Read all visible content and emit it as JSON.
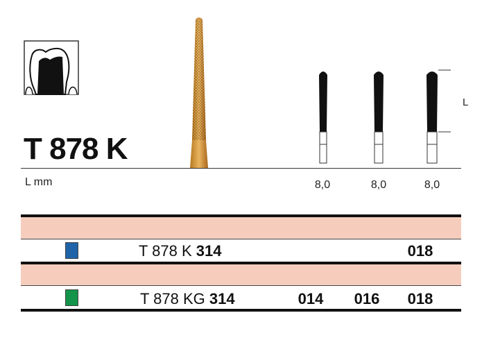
{
  "product": {
    "title": "T 878 K",
    "length_label": "L mm",
    "dimension_label": "L"
  },
  "lengths": [
    "8,0",
    "8,0",
    "8,0"
  ],
  "icons": {
    "application": "tooth-crown-preparation-icon",
    "bur": "diamond-bur-image"
  },
  "rows": [
    {
      "color": "#1f63a8",
      "code_prefix": "T 878 K",
      "code_suffix": "314",
      "sizes": [
        "",
        "",
        "018"
      ]
    },
    {
      "color": "#14944a",
      "code_prefix": "T 878 KG",
      "code_suffix": "314",
      "sizes": [
        "014",
        "016",
        "018"
      ]
    }
  ],
  "colors": {
    "header_band": "#f6cdbd",
    "rule": "#111111"
  }
}
